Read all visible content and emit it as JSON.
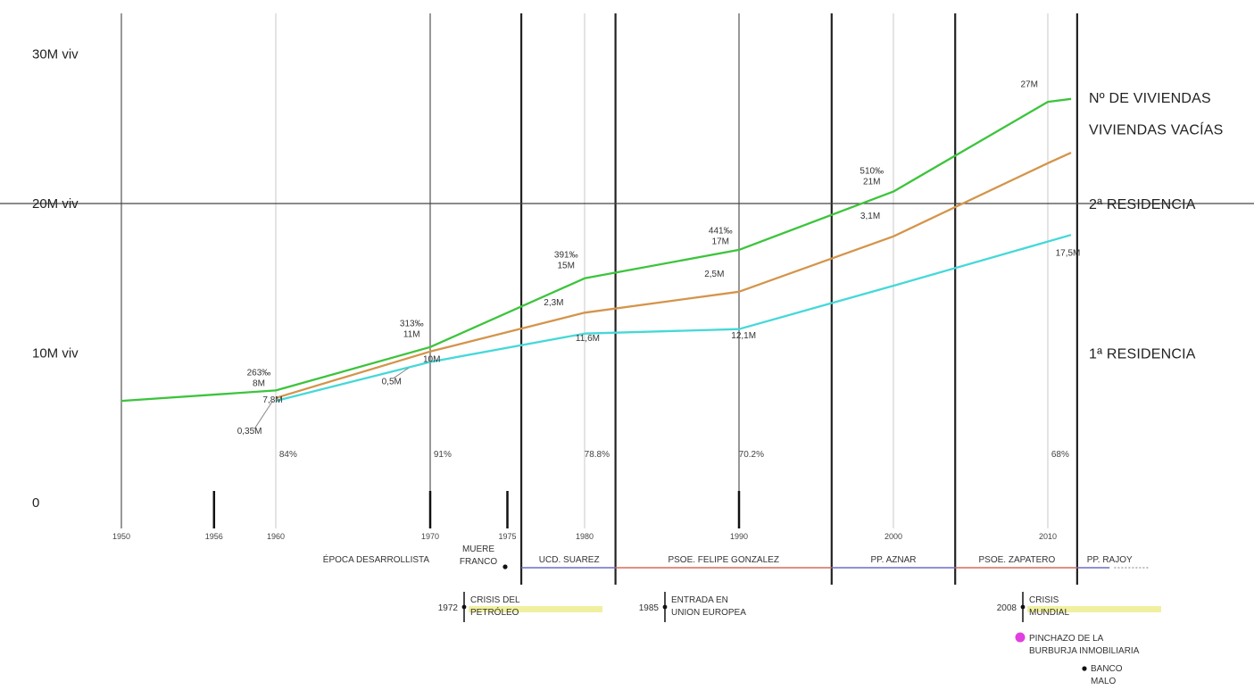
{
  "chart_data": {
    "type": "line",
    "title": "",
    "xlabel": "",
    "ylabel": "",
    "xlim": [
      1950,
      2012
    ],
    "ylim": [
      0,
      30
    ],
    "y_ticks": [
      {
        "value": 0,
        "label": "0"
      },
      {
        "value": 10,
        "label": "10M viv"
      },
      {
        "value": 20,
        "label": "20M viv"
      },
      {
        "value": 30,
        "label": "30M viv"
      }
    ],
    "x_ticks": [
      1950,
      1956,
      1960,
      1970,
      1975,
      1980,
      1990,
      2000,
      2010
    ],
    "x_tick_labels": [
      "1950",
      "1956",
      "1960",
      "1970",
      "1975",
      "1980",
      "1990",
      "2000",
      "2010"
    ],
    "series": [
      {
        "key": "total",
        "color": "#3cc43c",
        "x": [
          1950,
          1960,
          1970,
          1980,
          1990,
          2000,
          2010,
          2011.5
        ],
        "y": [
          6.8,
          7.5,
          10.4,
          15.0,
          16.9,
          20.8,
          26.8,
          27.0
        ]
      },
      {
        "key": "secondary",
        "color": "#d4944a",
        "x": [
          1960,
          1970,
          1980,
          1990,
          2000,
          2010,
          2011.5
        ],
        "y": [
          7.0,
          10.1,
          12.7,
          14.1,
          17.8,
          22.7,
          23.4
        ]
      },
      {
        "key": "primary",
        "color": "#45d8d8",
        "x": [
          1960,
          1970,
          1980,
          1990,
          2000,
          2011.5
        ],
        "y": [
          6.8,
          9.4,
          11.3,
          11.6,
          14.5,
          17.9
        ]
      }
    ],
    "series_labels": [
      {
        "text": "Nº DE VIVIENDAS",
        "y_value": 27.1
      },
      {
        "text": "VIVIENDAS VACÍAS",
        "y_value": 25.0
      },
      {
        "text": "2ª RESIDENCIA",
        "y_value": 20.0
      },
      {
        "text": "1ª RESIDENCIA",
        "y_value": 10.0
      }
    ],
    "annotations": [
      {
        "x": 1958.9,
        "y": 8.5,
        "lines": [
          "263‰",
          "8M"
        ]
      },
      {
        "x": 1959.8,
        "y": 6.7,
        "lines": [
          "7,8M"
        ]
      },
      {
        "x": 1958.3,
        "y": 4.6,
        "lines": [
          "0,35M"
        ]
      },
      {
        "x": 1968.8,
        "y": 11.8,
        "lines": [
          "313‰",
          "11M"
        ]
      },
      {
        "x": 1970.1,
        "y": 9.4,
        "lines": [
          "10M"
        ]
      },
      {
        "x": 1967.5,
        "y": 7.9,
        "lines": [
          "0,5M"
        ]
      },
      {
        "x": 1978.8,
        "y": 16.4,
        "lines": [
          "391‰",
          "15M"
        ]
      },
      {
        "x": 1978.0,
        "y": 13.2,
        "lines": [
          "2,3M"
        ]
      },
      {
        "x": 1980.2,
        "y": 10.8,
        "lines": [
          "11,6M"
        ]
      },
      {
        "x": 1988.8,
        "y": 18.0,
        "lines": [
          "441‰",
          "17M"
        ]
      },
      {
        "x": 1988.4,
        "y": 15.1,
        "lines": [
          "2,5M"
        ]
      },
      {
        "x": 1990.3,
        "y": 11.0,
        "lines": [
          "12,1M"
        ]
      },
      {
        "x": 1998.6,
        "y": 22.0,
        "lines": [
          "510‰",
          "21M"
        ]
      },
      {
        "x": 1998.5,
        "y": 19.0,
        "lines": [
          "3,1M"
        ]
      },
      {
        "x": 2008.8,
        "y": 27.8,
        "lines": [
          "27M"
        ]
      },
      {
        "x": 2011.3,
        "y": 16.5,
        "lines": [
          "17,5M"
        ]
      }
    ],
    "percent_labels": [
      {
        "x": 1960.8,
        "text": "84%"
      },
      {
        "x": 1970.8,
        "text": "91%"
      },
      {
        "x": 1980.8,
        "text": "78.8%"
      },
      {
        "x": 1990.8,
        "text": "70.2%"
      },
      {
        "x": 2010.8,
        "text": "68%"
      }
    ],
    "era_boundaries": [
      1975.9,
      1982.0,
      1996.0,
      2004.0,
      2011.9
    ],
    "periods": [
      {
        "text": "ÉPOCA DESARROLLISTA",
        "x_center": 1966.5,
        "color": ""
      },
      {
        "text": "UCD. SUAREZ",
        "x_center": 1979.0,
        "x_from": 1975.9,
        "x_to": 1982.0,
        "color": "#6b6bc8"
      },
      {
        "text": "PSOE. FELIPE GONZALEZ",
        "x_center": 1989.0,
        "x_from": 1982.0,
        "x_to": 1996.0,
        "color": "#d66a5a"
      },
      {
        "text": "PP. AZNAR",
        "x_center": 2000.0,
        "x_from": 1996.0,
        "x_to": 2004.0,
        "color": "#6b6bc8"
      },
      {
        "text": "PSOE. ZAPATERO",
        "x_center": 2008.0,
        "x_from": 2004.0,
        "x_to": 2011.9,
        "color": "#d66a5a"
      },
      {
        "text": "PP. RAJOY",
        "x_center": 2014.0,
        "x_from": 2011.9,
        "x_to": 2014.0,
        "color": "#6b6bc8"
      }
    ],
    "events": [
      {
        "lines": [
          "MUERE",
          "FRANCO"
        ],
        "year": "",
        "x": 1975.0,
        "marker": "dot"
      },
      {
        "lines": [
          "CRISIS DEL",
          "PETRÓLEO"
        ],
        "year": "1972",
        "x": 1972.0,
        "marker": "bar",
        "highlight": "#f0f0a0"
      },
      {
        "lines": [
          "ENTRADA EN",
          "UNION EUROPEA"
        ],
        "year": "1985",
        "x": 1985.5,
        "marker": "bar",
        "highlight": ""
      },
      {
        "lines": [
          "CRISIS",
          "MUNDIAL"
        ],
        "year": "2008",
        "x": 2008.8,
        "marker": "bar",
        "highlight": "#f0f0a0"
      },
      {
        "lines": [
          "PINCHAZO DE LA",
          "BURBURJA INMOBILIARIA"
        ],
        "year": "",
        "x": 2008.8,
        "marker": "pink"
      },
      {
        "lines": [
          "BANCO",
          "MALO"
        ],
        "year": "",
        "x": 2011.9,
        "marker": "dot"
      }
    ],
    "colors": {
      "total": "#3cc43c",
      "secondary": "#d4944a",
      "primary": "#45d8d8",
      "pink": "#e040e0",
      "highlight": "#f0f0a0",
      "blue_era": "#6b6bc8",
      "red_era": "#d66a5a"
    }
  }
}
